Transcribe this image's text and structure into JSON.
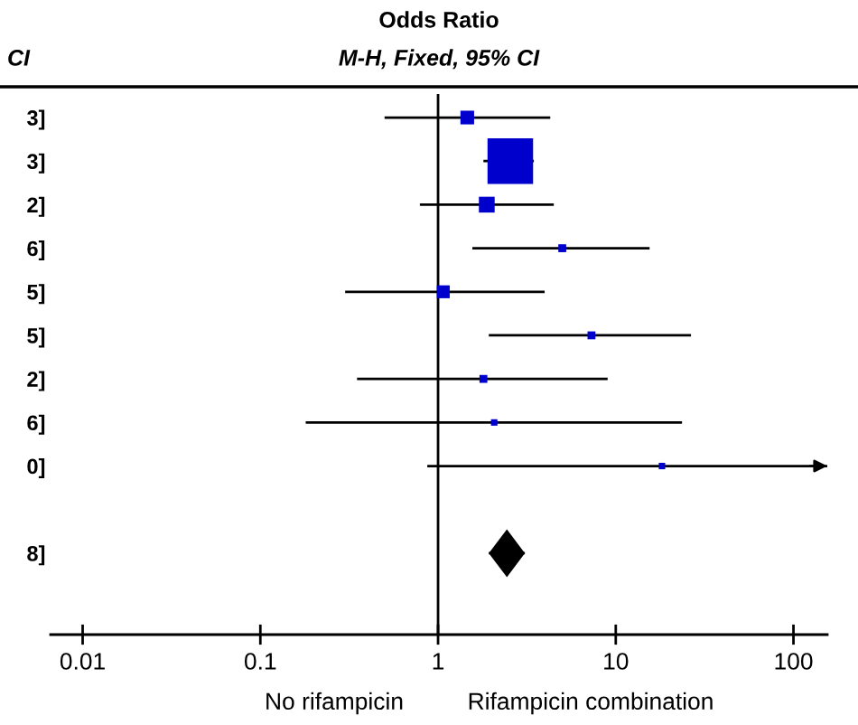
{
  "chart_data": {
    "type": "scatter",
    "orientation": "horizontal",
    "title": "Odds Ratio",
    "subtitle": "M-H, Fixed, 95% CI",
    "categories": [
      "3]",
      "3]",
      "2]",
      "6]",
      "5]",
      "5]",
      "2]",
      "6]",
      "0]",
      null,
      "8]"
    ],
    "series": [
      {
        "type": "bubble",
        "color": "#0000cc",
        "marker": "square",
        "values": [
          1.46,
          2.55,
          1.88,
          5.0,
          1.07,
          7.3,
          1.8,
          2.07,
          18.2,
          null,
          null
        ],
        "sizes": [
          0.09,
          1,
          0.12,
          0.03,
          0.08,
          0.03,
          0.03,
          0.02,
          0.02,
          null,
          null
        ],
        "errors": [
          [
            0.5,
            4.28
          ],
          [
            1.8,
            3.46
          ],
          [
            0.79,
            4.48
          ],
          [
            1.56,
            15.5
          ],
          [
            0.3,
            3.98
          ],
          [
            1.93,
            26.5
          ],
          [
            0.35,
            9.0
          ],
          [
            0.18,
            23.6
          ],
          [
            0.87,
            155
          ],
          null,
          null
        ]
      },
      {
        "color": "#000000",
        "marker": "diamond",
        "values": [
          null,
          null,
          null,
          null,
          null,
          null,
          null,
          null,
          null,
          null,
          2.44
        ],
        "errors": [
          null,
          null,
          null,
          null,
          null,
          null,
          null,
          null,
          null,
          null,
          [
            1.93,
            3.08
          ]
        ]
      }
    ],
    "log": "x",
    "xlim": [
      0.0066,
      155
    ],
    "xticks": [
      0.01,
      0.1,
      1,
      10,
      100
    ],
    "ref_lines": [
      {
        "axis": "x",
        "value": 1,
        "color": "#000000"
      }
    ],
    "annotations": [
      "CI",
      "No rifampicin",
      "Rifampicin combination"
    ],
    "grid": false,
    "legend": false
  }
}
